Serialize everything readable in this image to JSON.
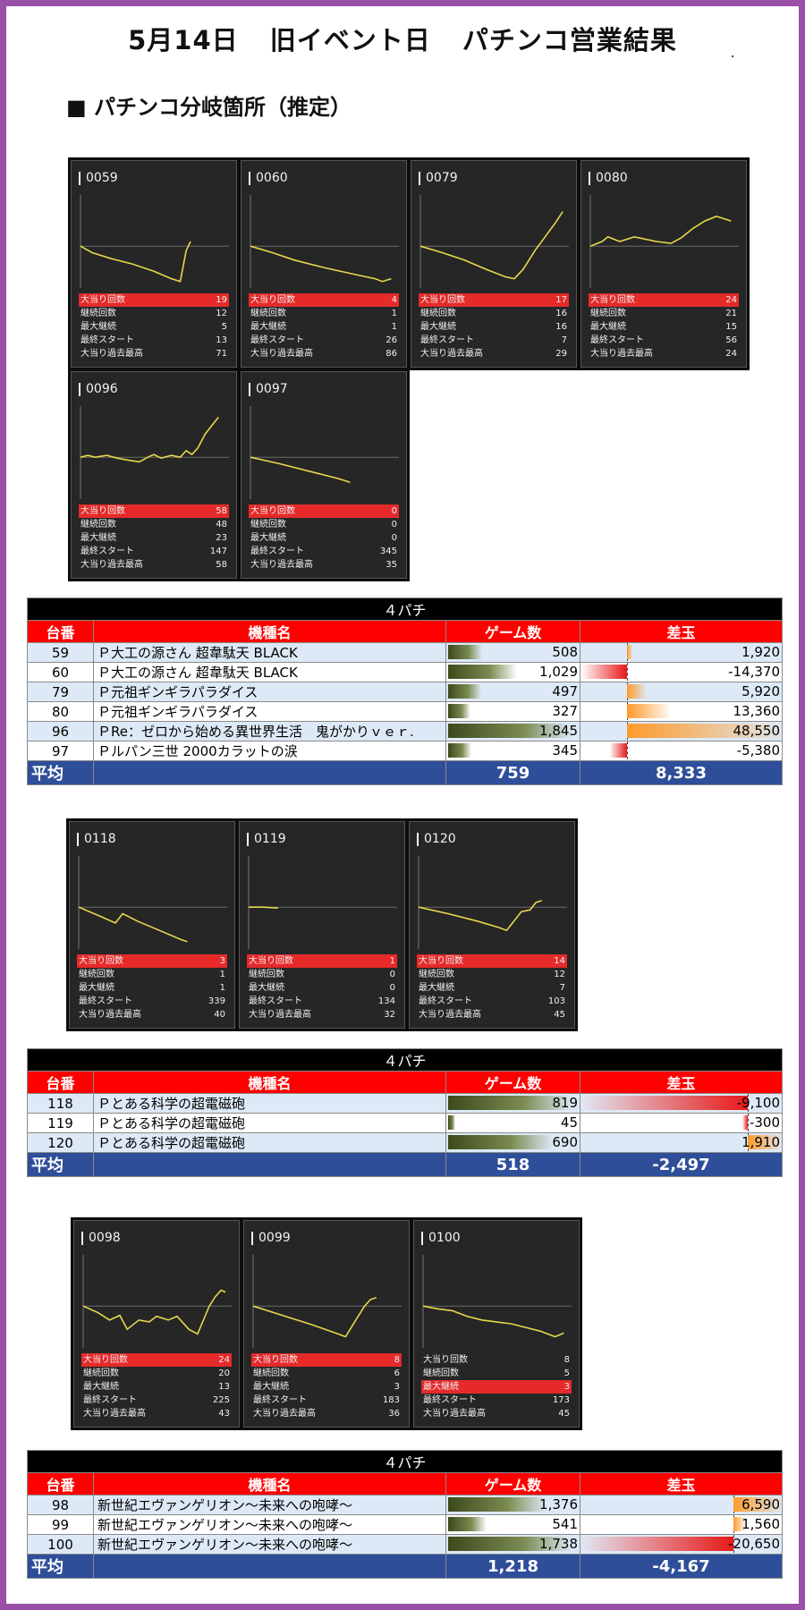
{
  "title": {
    "date": "5月14日",
    "event": "旧イベント日",
    "result": "パチンコ営業結果"
  },
  "section_heading": "■ パチンコ分岐箇所（推定）",
  "stat_labels": [
    "大当り回数",
    "継続回数",
    "最大継続",
    "最終スタート",
    "大当り過去最高"
  ],
  "colors": {
    "highlight": "#e62a2a",
    "graph_line": "#e6d84a",
    "header_red": "#ff0000",
    "avg_blue": "#2e4e99",
    "frame": "#9a4fa8"
  },
  "groups": [
    {
      "panels": [
        {
          "id": "0059",
          "stats": [
            "19",
            "12",
            "5",
            "13",
            "71"
          ],
          "highlight": 0,
          "graph": [
            [
              0,
              0.55
            ],
            [
              0.08,
              0.62
            ],
            [
              0.2,
              0.68
            ],
            [
              0.35,
              0.74
            ],
            [
              0.5,
              0.82
            ],
            [
              0.62,
              0.9
            ],
            [
              0.68,
              0.93
            ],
            [
              0.72,
              0.6
            ],
            [
              0.75,
              0.5
            ]
          ]
        },
        {
          "id": "0060",
          "stats": [
            "4",
            "1",
            "1",
            "26",
            "86"
          ],
          "highlight": 0,
          "graph": [
            [
              0,
              0.55
            ],
            [
              0.15,
              0.62
            ],
            [
              0.3,
              0.7
            ],
            [
              0.5,
              0.78
            ],
            [
              0.7,
              0.85
            ],
            [
              0.85,
              0.9
            ],
            [
              0.9,
              0.93
            ],
            [
              0.94,
              0.91
            ],
            [
              0.96,
              0.9
            ]
          ]
        },
        {
          "id": "0079",
          "stats": [
            "17",
            "16",
            "16",
            "7",
            "29"
          ],
          "highlight": 0,
          "graph": [
            [
              0,
              0.55
            ],
            [
              0.15,
              0.62
            ],
            [
              0.3,
              0.7
            ],
            [
              0.45,
              0.8
            ],
            [
              0.58,
              0.88
            ],
            [
              0.64,
              0.9
            ],
            [
              0.7,
              0.8
            ],
            [
              0.78,
              0.6
            ],
            [
              0.85,
              0.45
            ],
            [
              0.92,
              0.3
            ],
            [
              0.97,
              0.18
            ]
          ]
        },
        {
          "id": "0080",
          "stats": [
            "24",
            "21",
            "15",
            "56",
            "24"
          ],
          "highlight": 0,
          "graph": [
            [
              0,
              0.55
            ],
            [
              0.08,
              0.5
            ],
            [
              0.12,
              0.45
            ],
            [
              0.2,
              0.5
            ],
            [
              0.3,
              0.45
            ],
            [
              0.45,
              0.5
            ],
            [
              0.55,
              0.52
            ],
            [
              0.62,
              0.46
            ],
            [
              0.7,
              0.36
            ],
            [
              0.78,
              0.28
            ],
            [
              0.86,
              0.23
            ],
            [
              0.92,
              0.26
            ],
            [
              0.96,
              0.28
            ]
          ]
        },
        {
          "id": "0096",
          "stats": [
            "58",
            "48",
            "23",
            "147",
            "58"
          ],
          "highlight": 0,
          "graph": [
            [
              0,
              0.55
            ],
            [
              0.05,
              0.53
            ],
            [
              0.1,
              0.55
            ],
            [
              0.18,
              0.53
            ],
            [
              0.25,
              0.56
            ],
            [
              0.32,
              0.58
            ],
            [
              0.4,
              0.6
            ],
            [
              0.46,
              0.55
            ],
            [
              0.5,
              0.52
            ],
            [
              0.55,
              0.56
            ],
            [
              0.62,
              0.53
            ],
            [
              0.68,
              0.55
            ],
            [
              0.72,
              0.48
            ],
            [
              0.76,
              0.52
            ],
            [
              0.8,
              0.45
            ],
            [
              0.85,
              0.3
            ],
            [
              0.9,
              0.2
            ],
            [
              0.94,
              0.12
            ]
          ]
        },
        {
          "id": "0097",
          "stats": [
            "0",
            "0",
            "0",
            "345",
            "35"
          ],
          "highlight": 0,
          "graph": [
            [
              0,
              0.55
            ],
            [
              0.2,
              0.62
            ],
            [
              0.4,
              0.7
            ],
            [
              0.6,
              0.78
            ],
            [
              0.68,
              0.82
            ]
          ]
        }
      ],
      "table": {
        "caption": "４パチ",
        "headers": [
          "台番",
          "機種名",
          "ゲーム数",
          "差玉"
        ],
        "rows": [
          {
            "no": "59",
            "machine": "Ｐ大工の源さん 超韋駄天 BLACK",
            "games": 508,
            "games_text": "508",
            "diff": 1920,
            "diff_text": "1,920"
          },
          {
            "no": "60",
            "machine": "Ｐ大工の源さん 超韋駄天 BLACK",
            "games": 1029,
            "games_text": "1,029",
            "diff": -14370,
            "diff_text": "-14,370"
          },
          {
            "no": "79",
            "machine": "Ｐ元祖ギンギラパラダイス",
            "games": 497,
            "games_text": "497",
            "diff": 5920,
            "diff_text": "5,920"
          },
          {
            "no": "80",
            "machine": "Ｐ元祖ギンギラパラダイス",
            "games": 327,
            "games_text": "327",
            "diff": 13360,
            "diff_text": "13,360"
          },
          {
            "no": "96",
            "machine": "ＰRe：ゼロから始める異世界生活　鬼がかりｖｅｒ.",
            "games": 1845,
            "games_text": "1,845",
            "diff": 48550,
            "diff_text": "48,550"
          },
          {
            "no": "97",
            "machine": "Ｐルパン三世 2000カラットの涙",
            "games": 345,
            "games_text": "345",
            "diff": -5380,
            "diff_text": "-5,380"
          }
        ],
        "avg_label": "平均",
        "avg_games": "759",
        "avg_diff": "8,333",
        "games_max": 1845,
        "diff_neg_max": 14370,
        "diff_pos_max": 48550
      }
    },
    {
      "panels": [
        {
          "id": "0118",
          "stats": [
            "3",
            "1",
            "1",
            "339",
            "40"
          ],
          "highlight": 0,
          "graph": [
            [
              0,
              0.55
            ],
            [
              0.15,
              0.65
            ],
            [
              0.25,
              0.72
            ],
            [
              0.3,
              0.62
            ],
            [
              0.4,
              0.7
            ],
            [
              0.55,
              0.8
            ],
            [
              0.7,
              0.9
            ],
            [
              0.74,
              0.92
            ]
          ]
        },
        {
          "id": "0119",
          "stats": [
            "1",
            "0",
            "0",
            "134",
            "32"
          ],
          "highlight": 0,
          "graph": [
            [
              0,
              0.55
            ],
            [
              0.1,
              0.55
            ],
            [
              0.2,
              0.56
            ]
          ]
        },
        {
          "id": "0120",
          "stats": [
            "14",
            "12",
            "7",
            "103",
            "45"
          ],
          "highlight": 0,
          "graph": [
            [
              0,
              0.55
            ],
            [
              0.2,
              0.62
            ],
            [
              0.4,
              0.7
            ],
            [
              0.55,
              0.77
            ],
            [
              0.6,
              0.8
            ],
            [
              0.64,
              0.72
            ],
            [
              0.7,
              0.6
            ],
            [
              0.76,
              0.58
            ],
            [
              0.8,
              0.5
            ],
            [
              0.84,
              0.48
            ]
          ]
        }
      ],
      "table": {
        "caption": "４パチ",
        "headers": [
          "台番",
          "機種名",
          "ゲーム数",
          "差玉"
        ],
        "rows": [
          {
            "no": "118",
            "machine": "Ｐとある科学の超電磁砲",
            "games": 819,
            "games_text": "819",
            "diff": -9100,
            "diff_text": "-9,100"
          },
          {
            "no": "119",
            "machine": "Ｐとある科学の超電磁砲",
            "games": 45,
            "games_text": "45",
            "diff": -300,
            "diff_text": "-300"
          },
          {
            "no": "120",
            "machine": "Ｐとある科学の超電磁砲",
            "games": 690,
            "games_text": "690",
            "diff": 1910,
            "diff_text": "1,910"
          }
        ],
        "avg_label": "平均",
        "avg_games": "518",
        "avg_diff": "-2,497",
        "games_max": 819,
        "diff_neg_max": 9100,
        "diff_pos_max": 1910
      }
    },
    {
      "panels": [
        {
          "id": "0098",
          "stats": [
            "24",
            "20",
            "13",
            "225",
            "43"
          ],
          "highlight": 0,
          "graph": [
            [
              0,
              0.55
            ],
            [
              0.1,
              0.62
            ],
            [
              0.18,
              0.7
            ],
            [
              0.25,
              0.65
            ],
            [
              0.3,
              0.8
            ],
            [
              0.38,
              0.7
            ],
            [
              0.45,
              0.72
            ],
            [
              0.5,
              0.66
            ],
            [
              0.58,
              0.7
            ],
            [
              0.64,
              0.66
            ],
            [
              0.72,
              0.8
            ],
            [
              0.78,
              0.85
            ],
            [
              0.86,
              0.55
            ],
            [
              0.9,
              0.45
            ],
            [
              0.94,
              0.38
            ],
            [
              0.97,
              0.4
            ]
          ]
        },
        {
          "id": "0099",
          "stats": [
            "8",
            "6",
            "3",
            "183",
            "36"
          ],
          "highlight": 0,
          "graph": [
            [
              0,
              0.55
            ],
            [
              0.2,
              0.65
            ],
            [
              0.4,
              0.75
            ],
            [
              0.58,
              0.85
            ],
            [
              0.63,
              0.88
            ],
            [
              0.7,
              0.7
            ],
            [
              0.76,
              0.55
            ],
            [
              0.8,
              0.48
            ],
            [
              0.84,
              0.46
            ]
          ]
        },
        {
          "id": "0100",
          "stats": [
            "8",
            "5",
            "3",
            "173",
            "45"
          ],
          "highlight": 2,
          "graph": [
            [
              0,
              0.55
            ],
            [
              0.1,
              0.58
            ],
            [
              0.2,
              0.6
            ],
            [
              0.3,
              0.66
            ],
            [
              0.4,
              0.7
            ],
            [
              0.5,
              0.72
            ],
            [
              0.6,
              0.74
            ],
            [
              0.7,
              0.78
            ],
            [
              0.8,
              0.82
            ],
            [
              0.9,
              0.88
            ],
            [
              0.96,
              0.84
            ]
          ]
        }
      ],
      "table": {
        "caption": "４パチ",
        "headers": [
          "台番",
          "機種名",
          "ゲーム数",
          "差玉"
        ],
        "rows": [
          {
            "no": "98",
            "machine": "新世紀エヴァンゲリオン～未来への咆哮～",
            "games": 1376,
            "games_text": "1,376",
            "diff": 6590,
            "diff_text": "6,590"
          },
          {
            "no": "99",
            "machine": "新世紀エヴァンゲリオン～未来への咆哮～",
            "games": 541,
            "games_text": "541",
            "diff": 1560,
            "diff_text": "1,560"
          },
          {
            "no": "100",
            "machine": "新世紀エヴァンゲリオン～未来への咆哮～",
            "games": 1738,
            "games_text": "1,738",
            "diff": -20650,
            "diff_text": "-20,650"
          }
        ],
        "avg_label": "平均",
        "avg_games": "1,218",
        "avg_diff": "-4,167",
        "games_max": 1738,
        "diff_neg_max": 20650,
        "diff_pos_max": 6590
      }
    }
  ],
  "chart_data": [
    {
      "type": "table",
      "title": "４パチ",
      "categories": [
        "59",
        "60",
        "79",
        "80",
        "96",
        "97"
      ],
      "series": [
        {
          "name": "ゲーム数",
          "values": [
            508,
            1029,
            497,
            327,
            1845,
            345
          ]
        },
        {
          "name": "差玉",
          "values": [
            1920,
            -14370,
            5920,
            13360,
            48550,
            -5380
          ]
        }
      ]
    },
    {
      "type": "table",
      "title": "４パチ",
      "categories": [
        "118",
        "119",
        "120"
      ],
      "series": [
        {
          "name": "ゲーム数",
          "values": [
            819,
            45,
            690
          ]
        },
        {
          "name": "差玉",
          "values": [
            -9100,
            -300,
            1910
          ]
        }
      ]
    },
    {
      "type": "table",
      "title": "４パチ",
      "categories": [
        "98",
        "99",
        "100"
      ],
      "series": [
        {
          "name": "ゲーム数",
          "values": [
            1376,
            541,
            1738
          ]
        },
        {
          "name": "差玉",
          "values": [
            6590,
            1560,
            -20650
          ]
        }
      ]
    }
  ]
}
